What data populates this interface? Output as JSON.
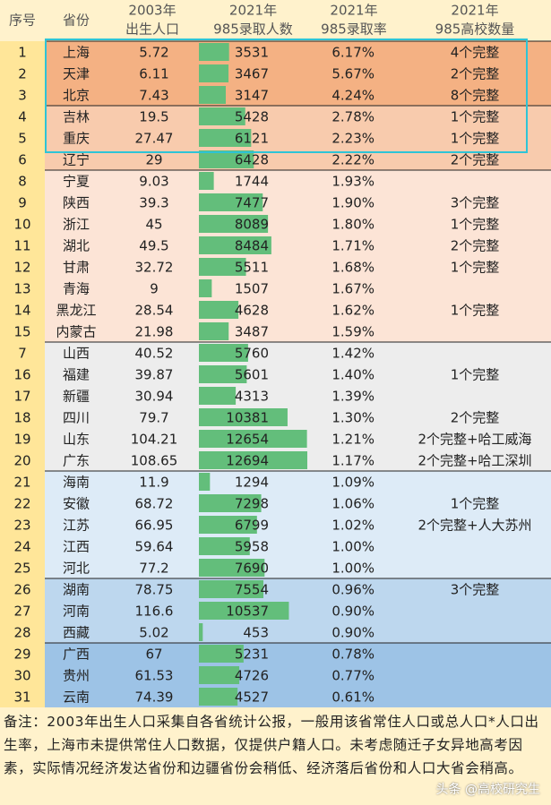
{
  "header": [
    [
      "序号"
    ],
    [
      "省份"
    ],
    [
      "2003年",
      "出生人口"
    ],
    [
      "2021年",
      "985录取人数"
    ],
    [
      "2021年",
      "985录取率"
    ],
    [
      "2021年",
      "985高校数量"
    ]
  ],
  "table": {
    "rows": [
      [
        1,
        "上海",
        5.72,
        3531,
        "6.17%",
        "4个完整"
      ],
      [
        2,
        "天津",
        6.11,
        3467,
        "5.67%",
        "2个完整"
      ],
      [
        3,
        "北京",
        7.43,
        3147,
        "4.24%",
        "8个完整"
      ],
      [
        4,
        "吉林",
        19.5,
        5428,
        "2.78%",
        "1个完整"
      ],
      [
        5,
        "重庆",
        27.47,
        6121,
        "2.23%",
        "1个完整"
      ],
      [
        6,
        "辽宁",
        29,
        6428,
        "2.22%",
        "2个完整"
      ],
      [
        8,
        "宁夏",
        9.03,
        1744,
        "1.93%",
        null
      ],
      [
        9,
        "陕西",
        39.3,
        7477,
        "1.90%",
        "3个完整"
      ],
      [
        10,
        "浙江",
        45,
        8089,
        "1.80%",
        "1个完整"
      ],
      [
        11,
        "湖北",
        49.5,
        8484,
        "1.71%",
        "2个完整"
      ],
      [
        12,
        "甘肃",
        32.72,
        5511,
        "1.68%",
        "1个完整"
      ],
      [
        13,
        "青海",
        9,
        1507,
        "1.67%",
        null
      ],
      [
        14,
        "黑龙江",
        28.54,
        4628,
        "1.62%",
        "1个完整"
      ],
      [
        15,
        "内蒙古",
        21.98,
        3487,
        "1.59%",
        null
      ],
      [
        7,
        "山西",
        40.52,
        5760,
        "1.42%",
        null
      ],
      [
        16,
        "福建",
        39.87,
        5601,
        "1.40%",
        "1个完整"
      ],
      [
        17,
        "新疆",
        30.94,
        4313,
        "1.39%",
        null
      ],
      [
        18,
        "四川",
        79.7,
        10381,
        "1.30%",
        "2个完整"
      ],
      [
        19,
        "山东",
        104.21,
        12654,
        "1.21%",
        "2个完整+哈工威海"
      ],
      [
        20,
        "广东",
        108.65,
        12694,
        "1.17%",
        "2个完整+哈工深圳"
      ],
      [
        21,
        "海南",
        11.9,
        1294,
        "1.09%",
        null
      ],
      [
        22,
        "安徽",
        68.72,
        7298,
        "1.06%",
        "1个完整"
      ],
      [
        23,
        "江苏",
        66.95,
        6799,
        "1.02%",
        "2个完整+人大苏州"
      ],
      [
        24,
        "江西",
        59.64,
        5958,
        "1.00%",
        null
      ],
      [
        25,
        "河北",
        77.2,
        7690,
        "1.00%",
        null
      ],
      [
        26,
        "湖南",
        78.75,
        7554,
        "0.96%",
        "3个完整"
      ],
      [
        27,
        "河南",
        116.6,
        10537,
        "0.90%",
        null
      ],
      [
        28,
        "西藏",
        5.02,
        453,
        "0.90%",
        null
      ],
      [
        29,
        "广西",
        67,
        5231,
        "0.78%",
        null
      ],
      [
        30,
        "贵州",
        61.53,
        4726,
        "0.77%",
        null
      ],
      [
        31,
        "云南",
        74.39,
        4527,
        "0.61%",
        null
      ]
    ]
  },
  "note": "备注：2003年出生人口采集自各省统计公报，一般用该省常住人口或总人口*人口出生率，上海市未提供常住人口数据，仅提供户籍人口。未考虑随迁子女异地高考因素，实际情况经济发达省份和边疆省份会稍低、经济落后省份和人口大省会稍高。",
  "watermark": "头条 @高校研究生"
}
